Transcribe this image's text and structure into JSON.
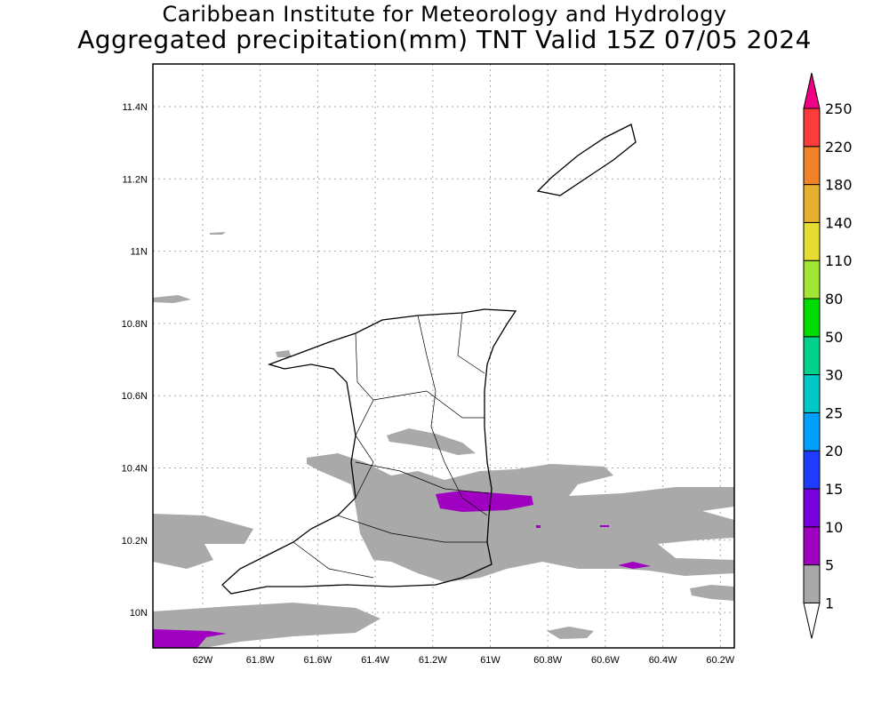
{
  "title": {
    "line1": "Caribbean Institute for Meteorology and Hydrology",
    "line2": "Aggregated precipitation(mm) TNT Valid 15Z 07/05 2024"
  },
  "chart_data": {
    "type": "map",
    "region": "Trinidad and Tobago",
    "variable": "Aggregated precipitation (mm)",
    "lat_ticks": [
      "11.4N",
      "11.2N",
      "11N",
      "10.8N",
      "10.6N",
      "10.4N",
      "10.2N",
      "10N"
    ],
    "lon_ticks": [
      "62W",
      "61.8W",
      "61.6W",
      "61.4W",
      "61.2W",
      "61W",
      "60.8W",
      "60.6W",
      "60.4W",
      "60.2W"
    ],
    "grid": true,
    "colorbar": {
      "levels": [
        "1",
        "5",
        "10",
        "15",
        "20",
        "25",
        "30",
        "50",
        "80",
        "110",
        "140",
        "180",
        "220",
        "250"
      ],
      "colors": [
        "#ffffff",
        "#a9a9a9",
        "#a000c0",
        "#7800dc",
        "#1e3cff",
        "#00a0ff",
        "#00c8c8",
        "#00d28c",
        "#00dc00",
        "#a0e632",
        "#e6dc32",
        "#e6af2d",
        "#f08228",
        "#fa3c3c",
        "#f00082"
      ]
    }
  }
}
